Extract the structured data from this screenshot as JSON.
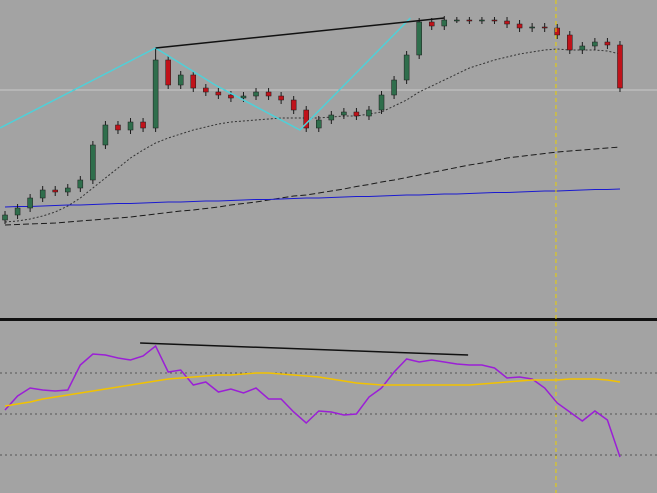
{
  "chart_data": [
    {
      "type": "candlestick",
      "xlim": [
        -0.4,
        51.95
      ],
      "ylim": [
        2,
        320
      ],
      "up_color": "#2f6e4c",
      "down_color": "#c0121a",
      "wick_color": "#1a1a1a",
      "open": [
        100,
        105,
        112,
        122,
        130,
        128,
        132,
        140,
        175,
        195,
        190,
        198,
        192,
        260,
        235,
        245,
        232,
        228,
        225,
        222,
        224,
        228,
        224,
        220,
        210,
        192,
        200,
        205,
        208,
        204,
        210,
        225,
        240,
        265,
        298,
        294,
        300,
        300,
        299,
        300,
        299,
        296,
        292,
        293,
        292,
        285,
        270,
        274,
        278,
        275
      ],
      "high": [
        109,
        116,
        126,
        134,
        134,
        136,
        144,
        179,
        199,
        199,
        202,
        202,
        272,
        264,
        249,
        249,
        236,
        232,
        229,
        228,
        232,
        232,
        228,
        224,
        214,
        204,
        209,
        212,
        212,
        214,
        229,
        244,
        269,
        302,
        302,
        304,
        303,
        303,
        303,
        303,
        303,
        300,
        297,
        297,
        296,
        289,
        278,
        282,
        282,
        279
      ],
      "low": [
        96,
        101,
        108,
        118,
        124,
        124,
        128,
        136,
        171,
        186,
        186,
        188,
        188,
        231,
        231,
        228,
        224,
        221,
        218,
        218,
        220,
        220,
        216,
        206,
        188,
        188,
        196,
        201,
        200,
        200,
        206,
        221,
        236,
        261,
        290,
        290,
        297,
        296,
        296,
        296,
        292,
        288,
        288,
        288,
        281,
        266,
        266,
        270,
        271,
        228
      ],
      "close": [
        105,
        112,
        122,
        130,
        128,
        132,
        140,
        175,
        195,
        190,
        198,
        192,
        260,
        235,
        245,
        232,
        228,
        225,
        222,
        224,
        228,
        224,
        220,
        210,
        192,
        200,
        205,
        208,
        204,
        210,
        225,
        240,
        265,
        298,
        294,
        300,
        300,
        299,
        300,
        299,
        296,
        292,
        293,
        292,
        285,
        270,
        274,
        278,
        275,
        232
      ],
      "series": [
        {
          "color": "#333333",
          "style": "dotted",
          "values": [
            98,
            99,
            101,
            104,
            108,
            114,
            122,
            132,
            142,
            152,
            162,
            170,
            177,
            182,
            186,
            190,
            193,
            196,
            198,
            199,
            200,
            201,
            202,
            202,
            202,
            202,
            203,
            204,
            204,
            206,
            208,
            214,
            220,
            228,
            234,
            240,
            246,
            252,
            256,
            260,
            263,
            266,
            268,
            270,
            271,
            270,
            270,
            270,
            269,
            266
          ]
        },
        {
          "color": "#1a1a1a",
          "style": "dashed",
          "values": [
            95,
            95.5,
            96,
            96.5,
            97,
            98,
            99,
            100,
            101,
            102,
            103,
            104.5,
            106,
            107.5,
            109,
            110,
            111.5,
            113,
            115,
            116.5,
            118,
            120,
            122,
            124,
            125,
            127,
            129,
            131,
            133.5,
            135.5,
            138,
            140,
            142.5,
            145,
            147.5,
            150,
            152.5,
            155,
            157,
            159.5,
            162,
            163.5,
            165,
            166.5,
            168,
            169,
            170,
            171,
            172,
            173
          ]
        },
        {
          "color": "#1a1ad0",
          "style": "solid",
          "values": [
            113,
            113.5,
            113.5,
            114,
            114.5,
            115,
            115,
            115.5,
            116,
            116.5,
            116.5,
            117,
            117.5,
            118,
            118,
            118.5,
            119,
            119,
            119.5,
            120,
            120.5,
            120.5,
            121,
            121.5,
            122,
            122,
            122.5,
            123,
            123.5,
            123.5,
            124,
            124.5,
            125,
            125,
            125.5,
            126,
            126,
            126.5,
            127,
            127.5,
            127.5,
            128,
            128.5,
            129,
            129,
            129.5,
            130,
            130.5,
            130.5,
            131
          ]
        }
      ],
      "overlays": [
        {
          "color": "#4fd0d8",
          "x": [
            -0.4,
            12,
            16.75,
            23.5,
            32.3
          ],
          "values": [
            192,
            272,
            235,
            190,
            302
          ]
        },
        {
          "color": "#111111",
          "x": [
            12,
            35
          ],
          "values": [
            272,
            302
          ]
        }
      ],
      "hline": 230,
      "hline_color": "#c8c8c8",
      "vline": 43.9,
      "vline_color": "#e8d000"
    },
    {
      "type": "line",
      "xlim": [
        -0.4,
        51.95
      ],
      "ylim": [
        0,
        171
      ],
      "levels": [
        120,
        79,
        38
      ],
      "level_color": "#555555",
      "series": [
        {
          "color": "#9b1fd6",
          "style": "solid",
          "values": [
            83,
            97,
            105,
            103,
            102,
            103,
            128,
            139,
            138,
            135,
            133,
            137,
            147,
            121,
            123,
            108,
            111,
            101,
            104,
            100,
            105,
            94,
            94,
            81,
            70,
            82,
            81,
            78,
            79,
            96,
            105,
            121,
            134,
            131,
            133,
            131,
            129,
            128,
            128,
            125,
            115,
            116,
            114,
            105,
            90,
            81,
            72,
            82,
            73,
            36
          ]
        },
        {
          "color": "#f2c200",
          "style": "solid",
          "values": [
            87,
            89,
            91,
            94,
            96,
            98,
            100,
            102,
            104,
            106,
            108,
            110,
            112,
            114,
            115,
            116,
            117,
            118,
            118,
            119,
            120,
            120,
            119,
            118,
            117,
            116,
            114,
            112,
            110,
            109,
            108,
            108,
            108,
            108,
            108,
            108,
            108,
            108,
            109,
            110,
            111,
            112,
            113,
            113,
            113,
            114,
            114,
            114,
            113,
            111
          ]
        }
      ],
      "overlays": [
        {
          "color": "#111111",
          "x": [
            10.76,
            36.9
          ],
          "values": [
            150,
            138
          ]
        }
      ]
    }
  ]
}
